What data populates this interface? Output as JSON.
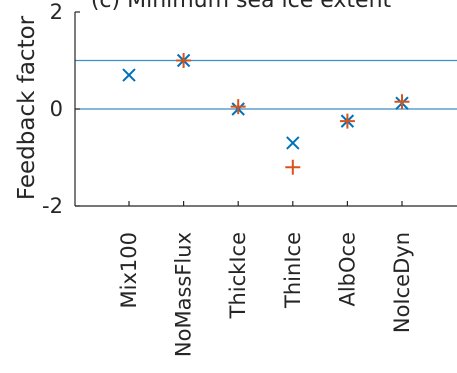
{
  "chart_data": {
    "type": "scatter",
    "title": "(c) Minimum sea ice extent",
    "xlabel": "",
    "ylabel": "Feedback factor",
    "ylim": [
      -2,
      2
    ],
    "yticks": [
      {
        "value": 2,
        "label": "2"
      },
      {
        "value": 0,
        "label": "0"
      },
      {
        "value": -2,
        "label": "-2"
      }
    ],
    "categories": [
      "Mix100",
      "NoMassFlux",
      "ThickIce",
      "ThinIce",
      "AlbOce",
      "NoIceDyn"
    ],
    "series": [
      {
        "marker": "x",
        "color": "#0072BD",
        "values": [
          0.7,
          1.0,
          0.0,
          -0.7,
          -0.25,
          0.12
        ]
      },
      {
        "marker": "plus",
        "color": "#D95319",
        "values": [
          null,
          1.0,
          0.05,
          -1.2,
          -0.25,
          0.15
        ]
      }
    ],
    "reference_lines": [
      {
        "value": 1.0,
        "color": "#3A8FC8"
      },
      {
        "value": 0.0,
        "color": "#3A8FC8"
      }
    ],
    "grid": false,
    "legend": "none"
  }
}
